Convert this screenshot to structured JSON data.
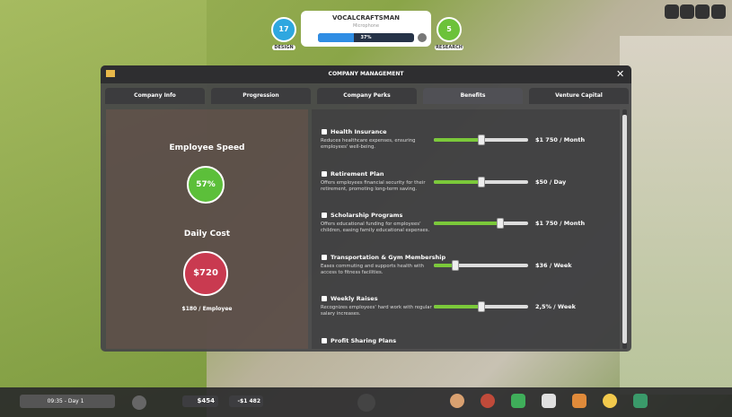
{
  "top_bar": {
    "design_count": "17",
    "design_label": "DESIGN",
    "product_title": "VOCALCRAFTSMAN",
    "product_subtitle": "Microphone",
    "progress": 37,
    "progress_label": "37%",
    "research_count": "5",
    "research_label": "RESEARCH"
  },
  "panel": {
    "title": "COMPANY MANAGEMENT",
    "tabs": [
      "Company Info",
      "Progression",
      "Company Perks",
      "Benefits",
      "Venture Capital"
    ],
    "summary": {
      "speed_title": "Employee Speed",
      "speed_value": "57%",
      "cost_title": "Daily Cost",
      "cost_value": "$720",
      "cost_per_employee": "$180 / Employee"
    },
    "benefits": [
      {
        "name": "Health Insurance",
        "description": "Reduces healthcare expenses, ensuring employees' well-being.",
        "value_label": "$1 750 / Month",
        "slider_position": 0.5
      },
      {
        "name": "Retirement Plan",
        "description": "Offers employees financial security for their retirement, promoting long-term saving.",
        "value_label": "$50 / Day",
        "slider_position": 0.5
      },
      {
        "name": "Scholarship Programs",
        "description": "Offers educational funding for employees' children, easing family educational expenses.",
        "value_label": "$1 750 / Month",
        "slider_position": 0.7
      },
      {
        "name": "Transportation & Gym Membership",
        "description": "Eases commuting and supports health with access to fitness facilities.",
        "value_label": "$36 / Week",
        "slider_position": 0.23
      },
      {
        "name": "Weekly Raises",
        "description": "Recognizes employees' hard work with regular salary increases.",
        "value_label": "2,5% / Week",
        "slider_position": 0.5
      },
      {
        "name": "Profit Sharing Plans"
      }
    ]
  },
  "bottom_bar": {
    "time": "09:35 - Day 1",
    "money": "$454",
    "balance": "-$1 482"
  }
}
